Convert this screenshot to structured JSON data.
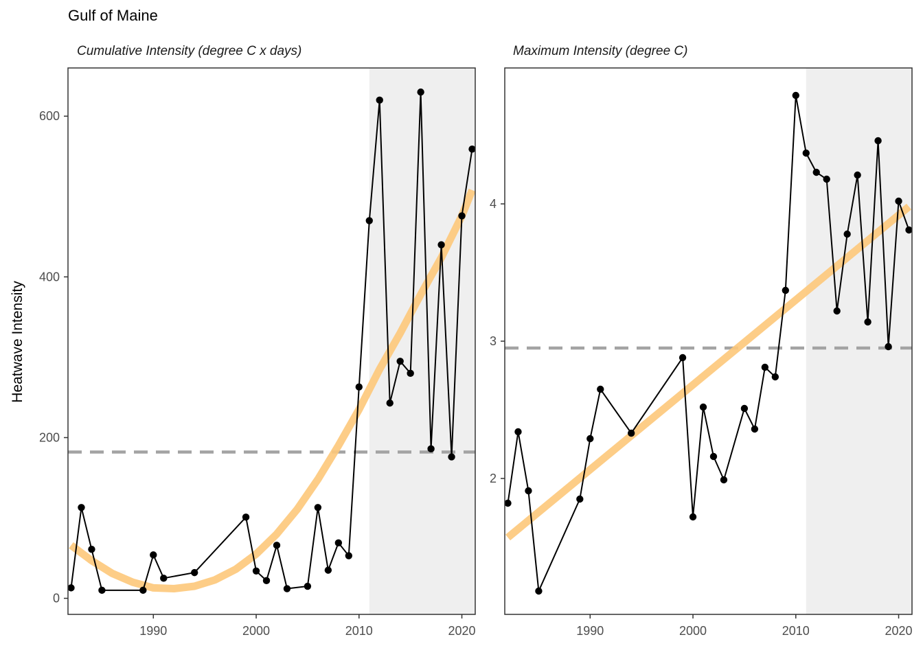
{
  "title": "Gulf of Maine",
  "ylabel": "Heatwave Intensity",
  "colors": {
    "trend": "#fdc87a",
    "threshold": "#a3a3a3",
    "shade": "#efefef",
    "line": "#000000",
    "point": "#000000"
  },
  "chart_data": [
    {
      "type": "line",
      "title": "Cumulative Intensity (degree C x days)",
      "xlabel": "",
      "xlim": [
        1981.7,
        2021.3
      ],
      "ylim": [
        -20,
        660
      ],
      "xticks": [
        1990,
        2000,
        2010,
        2020
      ],
      "yticks": [
        0,
        200,
        400,
        600
      ],
      "shaded_region": [
        2011,
        2021.3
      ],
      "threshold": 182,
      "trend": {
        "x": [
          1982,
          1984,
          1986,
          1988,
          1990,
          1992,
          1994,
          1996,
          1998,
          2000,
          2002,
          2004,
          2006,
          2008,
          2010,
          2012,
          2014,
          2016,
          2018,
          2020,
          2021
        ],
        "y": [
          66,
          47,
          31,
          20,
          13,
          12,
          15,
          23,
          36,
          55,
          80,
          111,
          148,
          190,
          235,
          285,
          330,
          378,
          424,
          476,
          508
        ]
      },
      "series": [
        {
          "x": [
            1982,
            1983,
            1984,
            1985,
            1989,
            1990,
            1991,
            1994,
            1999,
            2000,
            2001,
            2002,
            2003,
            2005,
            2006,
            2007,
            2008,
            2009,
            2010,
            2011,
            2012,
            2013,
            2014,
            2015,
            2016,
            2017,
            2018,
            2019,
            2020,
            2021
          ],
          "y": [
            13,
            113,
            61,
            10,
            10,
            54,
            25,
            32,
            101,
            34,
            22,
            66,
            12,
            15,
            113,
            35,
            69,
            53,
            263,
            470,
            620,
            243,
            295,
            280,
            630,
            186,
            440,
            176,
            476,
            559
          ]
        }
      ]
    },
    {
      "type": "line",
      "title": "Maximum Intensity (degree C)",
      "xlabel": "",
      "xlim": [
        1981.7,
        2021.3
      ],
      "ylim": [
        1.01,
        4.99
      ],
      "xticks": [
        1990,
        2000,
        2010,
        2020
      ],
      "yticks": [
        2,
        3,
        4
      ],
      "shaded_region": [
        2011,
        2021.3
      ],
      "threshold": 2.95,
      "trend": {
        "x": [
          1982,
          2021
        ],
        "y": [
          1.57,
          3.98
        ]
      },
      "series": [
        {
          "x": [
            1982,
            1983,
            1984,
            1985,
            1989,
            1990,
            1991,
            1994,
            1999,
            2000,
            2001,
            2002,
            2003,
            2005,
            2006,
            2007,
            2008,
            2009,
            2010,
            2011,
            2012,
            2013,
            2014,
            2015,
            2016,
            2017,
            2018,
            2019,
            2020,
            2021
          ],
          "y": [
            1.82,
            2.34,
            1.91,
            1.18,
            1.85,
            2.29,
            2.65,
            2.33,
            2.88,
            1.72,
            2.52,
            2.16,
            1.99,
            2.51,
            2.36,
            2.81,
            2.74,
            3.37,
            4.79,
            4.37,
            4.23,
            4.18,
            3.22,
            3.78,
            4.21,
            3.14,
            4.46,
            2.96,
            4.02,
            3.81
          ]
        }
      ]
    }
  ]
}
